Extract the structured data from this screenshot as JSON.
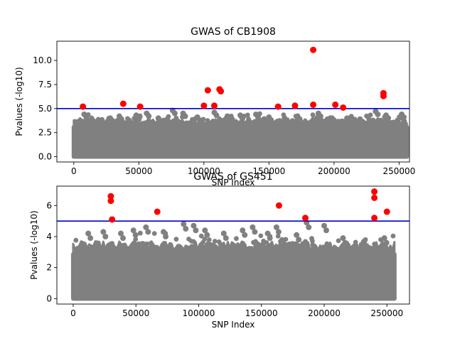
{
  "chart_data": [
    {
      "type": "scatter",
      "title": "GWAS of CB1908",
      "xlabel": "SNP Index",
      "ylabel": "Pvalues (-log10)",
      "xlim": [
        -13000,
        258000
      ],
      "ylim": [
        -0.55,
        12.0
      ],
      "xticks": [
        0,
        50000,
        100000,
        150000,
        200000,
        250000
      ],
      "xtick_labels": [
        "0",
        "50000",
        "100000",
        "150000",
        "200000",
        "250000"
      ],
      "yticks": [
        0.0,
        2.5,
        5.0,
        7.5,
        10.0
      ],
      "ytick_labels": [
        "0.0",
        "2.5",
        "5.0",
        "7.5",
        "10.0"
      ],
      "grid": false,
      "threshold": 5.0,
      "colors": {
        "background_points": "#808080",
        "significant_points": "#ff0000",
        "threshold_line": "#0000cc"
      },
      "background_band": {
        "x_range": [
          0,
          256000
        ],
        "typical_max": 3.3
      },
      "background_peaks": [
        {
          "x": 8000,
          "y": 4.4
        },
        {
          "x": 15000,
          "y": 3.7
        },
        {
          "x": 28000,
          "y": 4.0
        },
        {
          "x": 35000,
          "y": 4.2
        },
        {
          "x": 48000,
          "y": 4.3
        },
        {
          "x": 56000,
          "y": 4.5
        },
        {
          "x": 65000,
          "y": 4.0
        },
        {
          "x": 76000,
          "y": 4.8
        },
        {
          "x": 84000,
          "y": 4.5
        },
        {
          "x": 95000,
          "y": 4.1
        },
        {
          "x": 108000,
          "y": 4.6
        },
        {
          "x": 118000,
          "y": 4.2
        },
        {
          "x": 128000,
          "y": 4.3
        },
        {
          "x": 140000,
          "y": 4.4
        },
        {
          "x": 150000,
          "y": 4.1
        },
        {
          "x": 162000,
          "y": 4.0
        },
        {
          "x": 172000,
          "y": 4.2
        },
        {
          "x": 188000,
          "y": 4.5
        },
        {
          "x": 195000,
          "y": 3.9
        },
        {
          "x": 210000,
          "y": 4.0
        },
        {
          "x": 220000,
          "y": 3.9
        },
        {
          "x": 232000,
          "y": 4.7
        },
        {
          "x": 240000,
          "y": 4.3
        },
        {
          "x": 252000,
          "y": 4.4
        }
      ],
      "significant_points": [
        {
          "x": 7000,
          "y": 5.2
        },
        {
          "x": 38000,
          "y": 5.5
        },
        {
          "x": 51000,
          "y": 5.2
        },
        {
          "x": 100000,
          "y": 5.3
        },
        {
          "x": 103000,
          "y": 6.9
        },
        {
          "x": 108000,
          "y": 5.3
        },
        {
          "x": 112000,
          "y": 7.0
        },
        {
          "x": 113000,
          "y": 6.8
        },
        {
          "x": 157000,
          "y": 5.2
        },
        {
          "x": 170000,
          "y": 5.3
        },
        {
          "x": 184000,
          "y": 11.1
        },
        {
          "x": 184000,
          "y": 5.4
        },
        {
          "x": 201000,
          "y": 5.4
        },
        {
          "x": 207000,
          "y": 5.1
        },
        {
          "x": 238000,
          "y": 6.6
        },
        {
          "x": 238000,
          "y": 6.3
        }
      ]
    },
    {
      "type": "scatter",
      "title": "GWAS of GS451",
      "xlabel": "SNP Index",
      "ylabel": "Pvalues (-log10)",
      "xlim": [
        -13000,
        268000
      ],
      "ylim": [
        -0.35,
        7.25
      ],
      "xticks": [
        0,
        50000,
        100000,
        150000,
        200000,
        250000
      ],
      "xtick_labels": [
        "0",
        "50000",
        "100000",
        "150000",
        "200000",
        "250000"
      ],
      "yticks": [
        0,
        2,
        4,
        6
      ],
      "ytick_labels": [
        "0",
        "2",
        "4",
        "6"
      ],
      "grid": false,
      "threshold": 5.0,
      "colors": {
        "background_points": "#808080",
        "significant_points": "#ff0000",
        "threshold_line": "#0000cc"
      },
      "background_band": {
        "x_range": [
          0,
          256000
        ],
        "typical_max": 3.0
      },
      "background_peaks": [
        {
          "x": 12000,
          "y": 4.2
        },
        {
          "x": 24000,
          "y": 4.3
        },
        {
          "x": 38000,
          "y": 4.2
        },
        {
          "x": 48000,
          "y": 4.4
        },
        {
          "x": 58000,
          "y": 4.6
        },
        {
          "x": 72000,
          "y": 4.3
        },
        {
          "x": 88000,
          "y": 4.8
        },
        {
          "x": 96000,
          "y": 4.7
        },
        {
          "x": 105000,
          "y": 4.4
        },
        {
          "x": 120000,
          "y": 4.2
        },
        {
          "x": 135000,
          "y": 4.4
        },
        {
          "x": 143000,
          "y": 4.6
        },
        {
          "x": 155000,
          "y": 4.2
        },
        {
          "x": 162000,
          "y": 4.6
        },
        {
          "x": 178000,
          "y": 4.1
        },
        {
          "x": 186000,
          "y": 4.9
        },
        {
          "x": 200000,
          "y": 4.7
        },
        {
          "x": 215000,
          "y": 3.9
        },
        {
          "x": 232000,
          "y": 3.7
        },
        {
          "x": 248000,
          "y": 3.9
        }
      ],
      "significant_points": [
        {
          "x": 30000,
          "y": 6.6
        },
        {
          "x": 30000,
          "y": 6.3
        },
        {
          "x": 31000,
          "y": 5.1
        },
        {
          "x": 67000,
          "y": 5.6
        },
        {
          "x": 164000,
          "y": 6.0
        },
        {
          "x": 185000,
          "y": 5.2
        },
        {
          "x": 240000,
          "y": 6.9
        },
        {
          "x": 240000,
          "y": 6.5
        },
        {
          "x": 240000,
          "y": 5.2
        },
        {
          "x": 250000,
          "y": 5.6
        }
      ]
    }
  ]
}
